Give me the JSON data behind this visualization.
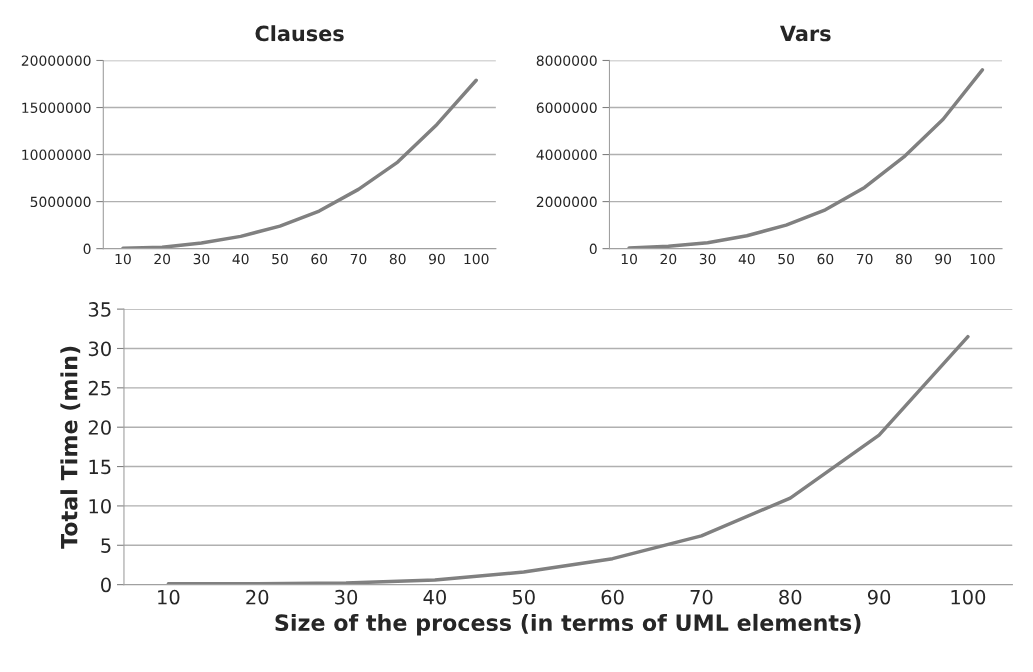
{
  "chart_data": [
    {
      "type": "line",
      "title": "Clauses",
      "categories": [
        "10",
        "20",
        "30",
        "40",
        "50",
        "60",
        "70",
        "80",
        "90",
        "100"
      ],
      "color": "#808080",
      "values": [
        50000,
        150000,
        600000,
        1300000,
        2400000,
        4000000,
        6300000,
        9200000,
        13200000,
        17900000
      ],
      "ylim": [
        0,
        20000000
      ],
      "yticks": [
        0,
        5000000,
        10000000,
        15000000,
        20000000
      ],
      "grid": "y"
    },
    {
      "type": "line",
      "title": "Vars",
      "categories": [
        "10",
        "20",
        "30",
        "40",
        "50",
        "60",
        "70",
        "80",
        "90",
        "100"
      ],
      "color": "#808080",
      "values": [
        30000,
        100000,
        250000,
        550000,
        1000000,
        1650000,
        2600000,
        3900000,
        5500000,
        7600000
      ],
      "ylim": [
        0,
        8000000
      ],
      "yticks": [
        0,
        2000000,
        4000000,
        6000000,
        8000000
      ],
      "grid": "y"
    },
    {
      "type": "line",
      "xlabel": "Size of the process (in terms of UML elements)",
      "ylabel": "Total Time (min)",
      "categories": [
        "10",
        "20",
        "30",
        "40",
        "50",
        "60",
        "70",
        "80",
        "90",
        "100"
      ],
      "color": "#808080",
      "values": [
        0.1,
        0.1,
        0.2,
        0.6,
        1.6,
        3.3,
        6.2,
        11,
        19,
        31.5
      ],
      "ylim": [
        0,
        35
      ],
      "yticks": [
        0,
        5,
        10,
        15,
        20,
        25,
        30,
        35
      ],
      "grid": "y"
    }
  ]
}
